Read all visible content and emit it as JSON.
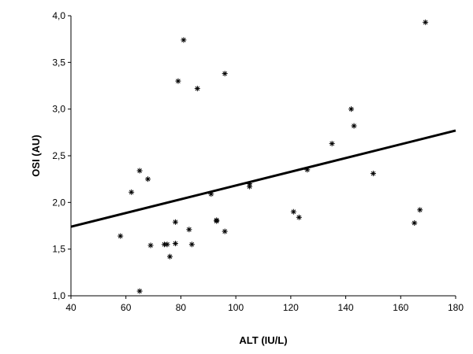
{
  "chart_data": {
    "type": "scatter",
    "xlabel": "ALT (IU/L)",
    "ylabel": "OSI (AU)",
    "xlim": [
      40,
      180
    ],
    "ylim": [
      1.0,
      4.0
    ],
    "x_ticks": [
      40,
      60,
      80,
      100,
      120,
      140,
      160,
      180
    ],
    "x_tick_labels": [
      "40",
      "60",
      "80",
      "100",
      "120",
      "140",
      "160",
      "180"
    ],
    "y_ticks": [
      1.0,
      1.5,
      2.0,
      2.5,
      3.0,
      3.5,
      4.0
    ],
    "y_tick_labels": [
      "1,0",
      "1,5",
      "2,0",
      "2,5",
      "3,0",
      "3,5",
      "4,0"
    ],
    "grid": false,
    "marker": "asterisk",
    "color": "#000000",
    "points": [
      {
        "x": 58,
        "y": 1.64
      },
      {
        "x": 62,
        "y": 2.11
      },
      {
        "x": 65,
        "y": 2.34
      },
      {
        "x": 65,
        "y": 1.05
      },
      {
        "x": 68,
        "y": 2.25
      },
      {
        "x": 69,
        "y": 1.54
      },
      {
        "x": 74,
        "y": 1.55
      },
      {
        "x": 75,
        "y": 1.55
      },
      {
        "x": 76,
        "y": 1.42
      },
      {
        "x": 78,
        "y": 1.56
      },
      {
        "x": 78,
        "y": 1.79
      },
      {
        "x": 79,
        "y": 3.3
      },
      {
        "x": 81,
        "y": 3.74
      },
      {
        "x": 83,
        "y": 1.71
      },
      {
        "x": 84,
        "y": 1.55
      },
      {
        "x": 86,
        "y": 3.22
      },
      {
        "x": 91,
        "y": 2.09
      },
      {
        "x": 93,
        "y": 1.81
      },
      {
        "x": 93,
        "y": 1.8
      },
      {
        "x": 96,
        "y": 3.38
      },
      {
        "x": 96,
        "y": 1.69
      },
      {
        "x": 105,
        "y": 2.2
      },
      {
        "x": 105,
        "y": 2.17
      },
      {
        "x": 121,
        "y": 1.9
      },
      {
        "x": 123,
        "y": 1.84
      },
      {
        "x": 126,
        "y": 2.35
      },
      {
        "x": 135,
        "y": 2.63
      },
      {
        "x": 142,
        "y": 3.0
      },
      {
        "x": 143,
        "y": 2.82
      },
      {
        "x": 150,
        "y": 2.31
      },
      {
        "x": 165,
        "y": 1.78
      },
      {
        "x": 167,
        "y": 1.92
      },
      {
        "x": 169,
        "y": 3.93
      }
    ],
    "trendline": {
      "x": [
        40,
        180
      ],
      "y": [
        1.74,
        2.77
      ]
    }
  }
}
